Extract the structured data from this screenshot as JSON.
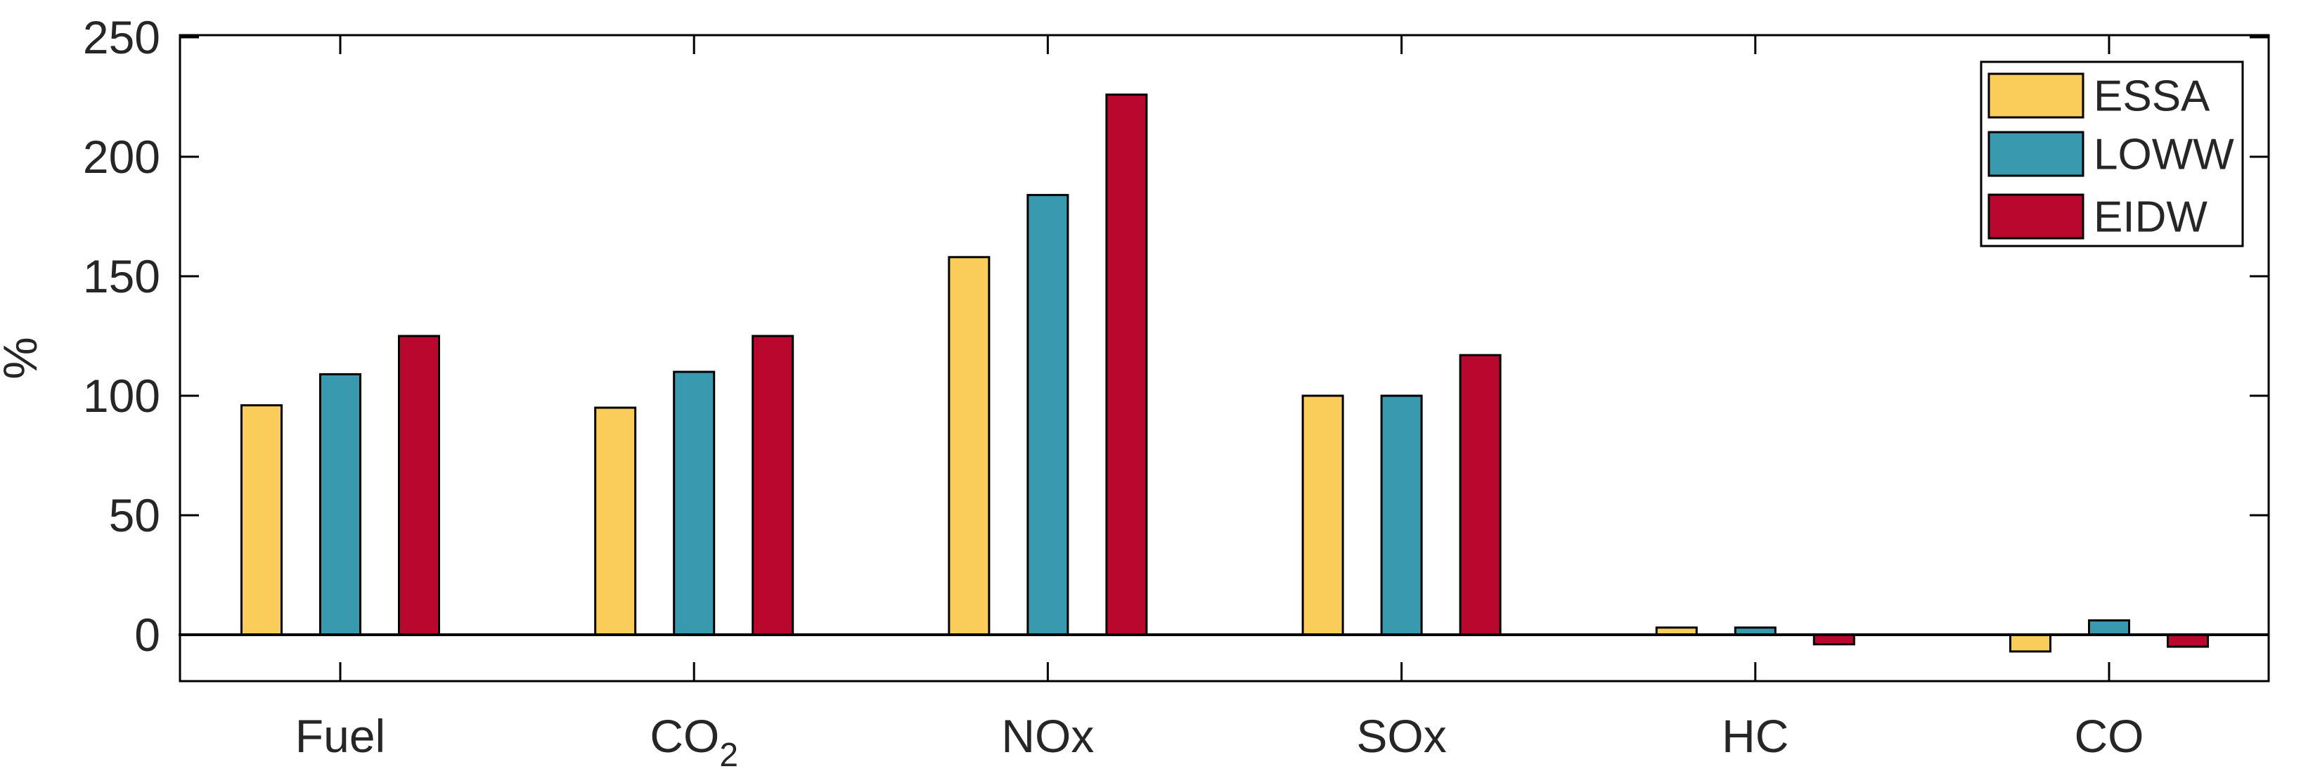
{
  "chart_data": {
    "type": "bar",
    "title": "",
    "xlabel": "",
    "ylabel": "%",
    "categories": [
      {
        "label": "Fuel",
        "sub": ""
      },
      {
        "label": "CO",
        "sub": "2"
      },
      {
        "label": "NOx",
        "sub": ""
      },
      {
        "label": "SOx",
        "sub": ""
      },
      {
        "label": "HC",
        "sub": ""
      },
      {
        "label": "CO",
        "sub": ""
      }
    ],
    "series": [
      {
        "name": "ESSA",
        "color": "#FACD5A",
        "values": [
          96,
          95,
          158,
          100,
          3,
          -7
        ]
      },
      {
        "name": "LOWW",
        "color": "#3999AE",
        "values": [
          109,
          110,
          184,
          100,
          3,
          6
        ]
      },
      {
        "name": "EIDW",
        "color": "#B9072E",
        "values": [
          125,
          125,
          226,
          117,
          -4,
          -5
        ]
      }
    ],
    "yticks": [
      0,
      50,
      100,
      150,
      200,
      250
    ],
    "ylim": [
      -20,
      250.3
    ],
    "baseline": 0,
    "grid": false,
    "legend_position": "top-right",
    "legend_entries": [
      "ESSA",
      "LOWW",
      "EIDW"
    ]
  },
  "style": {
    "background": "#ffffff",
    "axis_line_color": "#000000",
    "bar_edge_color": "#000000",
    "text_color": "#262626",
    "legend_background": "#ffffff",
    "legend_border_color": "#000000"
  }
}
